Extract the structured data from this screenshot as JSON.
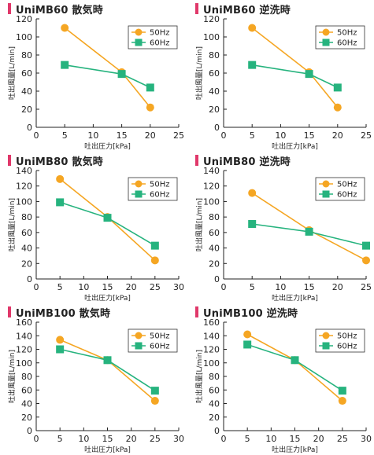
{
  "colors": {
    "s50": "#f5a623",
    "s60": "#26b37e",
    "title_bar": "#e0386a"
  },
  "chart_data": [
    {
      "type": "line",
      "title": "UniMB60 散気時",
      "xlabel": "吐出圧力[kPa]",
      "ylabel": "吐出風量[L/min]",
      "xlim": [
        0,
        25
      ],
      "ylim": [
        0,
        120
      ],
      "xticks": [
        0,
        5,
        10,
        15,
        20,
        25
      ],
      "yticks": [
        0,
        20,
        40,
        60,
        80,
        100,
        120
      ],
      "legend_position": "top-right",
      "series": [
        {
          "name": "50Hz",
          "marker": "circle",
          "color": "#f5a623",
          "x": [
            5,
            15,
            20
          ],
          "y": [
            110,
            61,
            22
          ]
        },
        {
          "name": "60Hz",
          "marker": "square",
          "color": "#26b37e",
          "x": [
            5,
            15,
            20
          ],
          "y": [
            69,
            59,
            44
          ]
        }
      ]
    },
    {
      "type": "line",
      "title": "UniMB60 逆洗時",
      "xlabel": "吐出圧力[kPa]",
      "ylabel": "吐出風量[L/min]",
      "xlim": [
        0,
        25
      ],
      "ylim": [
        0,
        120
      ],
      "xticks": [
        0,
        5,
        10,
        15,
        20,
        25
      ],
      "yticks": [
        0,
        20,
        40,
        60,
        80,
        100,
        120
      ],
      "legend_position": "top-right",
      "series": [
        {
          "name": "50Hz",
          "marker": "circle",
          "color": "#f5a623",
          "x": [
            5,
            15,
            20
          ],
          "y": [
            110,
            61,
            22
          ]
        },
        {
          "name": "60Hz",
          "marker": "square",
          "color": "#26b37e",
          "x": [
            5,
            15,
            20
          ],
          "y": [
            69,
            59,
            44
          ]
        }
      ]
    },
    {
      "type": "line",
      "title": "UniMB80 散気時",
      "xlabel": "吐出圧力[kPa]",
      "ylabel": "吐出風量[L/min]",
      "xlim": [
        0,
        30
      ],
      "ylim": [
        0,
        140
      ],
      "xticks": [
        0,
        5,
        10,
        15,
        20,
        25,
        30
      ],
      "yticks": [
        0,
        20,
        40,
        60,
        80,
        100,
        120,
        140
      ],
      "legend_position": "top-right",
      "series": [
        {
          "name": "50Hz",
          "marker": "circle",
          "color": "#f5a623",
          "x": [
            5,
            15,
            25
          ],
          "y": [
            129,
            80,
            24
          ]
        },
        {
          "name": "60Hz",
          "marker": "square",
          "color": "#26b37e",
          "x": [
            5,
            15,
            25
          ],
          "y": [
            99,
            79,
            43
          ]
        }
      ]
    },
    {
      "type": "line",
      "title": "UniMB80 逆洗時",
      "xlabel": "吐出圧力[kPa]",
      "ylabel": "吐出風量[L/min]",
      "xlim": [
        0,
        25
      ],
      "ylim": [
        0,
        140
      ],
      "xticks": [
        0,
        5,
        10,
        15,
        20,
        25
      ],
      "yticks": [
        0,
        20,
        40,
        60,
        80,
        100,
        120,
        140
      ],
      "legend_position": "top-right",
      "series": [
        {
          "name": "50Hz",
          "marker": "circle",
          "color": "#f5a623",
          "x": [
            5,
            15,
            25
          ],
          "y": [
            111,
            63,
            24
          ]
        },
        {
          "name": "60Hz",
          "marker": "square",
          "color": "#26b37e",
          "x": [
            5,
            15,
            25
          ],
          "y": [
            71,
            61,
            43
          ]
        }
      ]
    },
    {
      "type": "line",
      "title": "UniMB100 散気時",
      "xlabel": "吐出圧力[kPa]",
      "ylabel": "吐出風量[L/min]",
      "xlim": [
        0,
        30
      ],
      "ylim": [
        0,
        160
      ],
      "xticks": [
        0,
        5,
        10,
        15,
        20,
        25,
        30
      ],
      "yticks": [
        0,
        20,
        40,
        60,
        80,
        100,
        120,
        140,
        160
      ],
      "legend_position": "top-right",
      "series": [
        {
          "name": "50Hz",
          "marker": "circle",
          "color": "#f5a623",
          "x": [
            5,
            15,
            25
          ],
          "y": [
            134,
            104,
            44
          ]
        },
        {
          "name": "60Hz",
          "marker": "square",
          "color": "#26b37e",
          "x": [
            5,
            15,
            25
          ],
          "y": [
            120,
            104,
            59
          ]
        }
      ]
    },
    {
      "type": "line",
      "title": "UniMB100 逆洗時",
      "xlabel": "吐出圧力[kPa]",
      "ylabel": "吐出風量[L/min]",
      "xlim": [
        0,
        30
      ],
      "ylim": [
        0,
        160
      ],
      "xticks": [
        0,
        5,
        10,
        15,
        20,
        25,
        30
      ],
      "yticks": [
        0,
        20,
        40,
        60,
        80,
        100,
        120,
        140,
        160
      ],
      "legend_position": "top-right",
      "series": [
        {
          "name": "50Hz",
          "marker": "circle",
          "color": "#f5a623",
          "x": [
            5,
            15,
            25
          ],
          "y": [
            142,
            104,
            44
          ]
        },
        {
          "name": "60Hz",
          "marker": "square",
          "color": "#26b37e",
          "x": [
            5,
            15,
            25
          ],
          "y": [
            127,
            104,
            59
          ]
        }
      ]
    }
  ]
}
